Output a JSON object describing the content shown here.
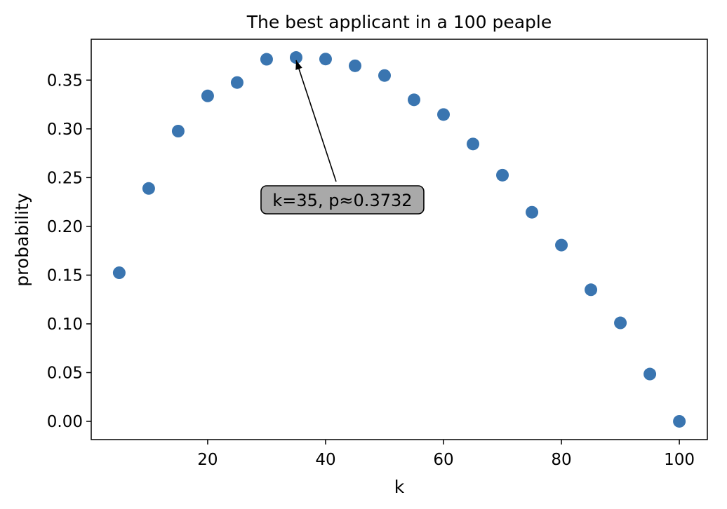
{
  "chart_data": {
    "type": "scatter",
    "title": "The best applicant in a 100 peaple",
    "xlabel": "k",
    "ylabel": "probability",
    "xlim": [
      0.25,
      104.75
    ],
    "ylim": [
      -0.0187,
      0.3919
    ],
    "xticks": [
      20,
      40,
      60,
      80,
      100
    ],
    "xtick_labels": [
      "20",
      "40",
      "60",
      "80",
      "100"
    ],
    "yticks": [
      0.0,
      0.05,
      0.1,
      0.15,
      0.2,
      0.25,
      0.3,
      0.35
    ],
    "ytick_labels": [
      "0.00",
      "0.05",
      "0.10",
      "0.15",
      "0.20",
      "0.25",
      "0.30",
      "0.35"
    ],
    "grid": false,
    "marker_color": "#3a75b0",
    "x": [
      5,
      10,
      15,
      20,
      25,
      30,
      35,
      40,
      45,
      50,
      55,
      60,
      65,
      70,
      75,
      80,
      85,
      90,
      95,
      100
    ],
    "y": [
      0.1524,
      0.2389,
      0.2977,
      0.3338,
      0.3475,
      0.3714,
      0.3732,
      0.3716,
      0.3647,
      0.3547,
      0.3298,
      0.3147,
      0.2845,
      0.2525,
      0.2145,
      0.1808,
      0.135,
      0.101,
      0.0485,
      0.0
    ],
    "annotation": {
      "text": "k=35, p≈0.3732",
      "target_x": 35,
      "target_y": 0.3732,
      "box_color": "#a9a9a9"
    }
  }
}
